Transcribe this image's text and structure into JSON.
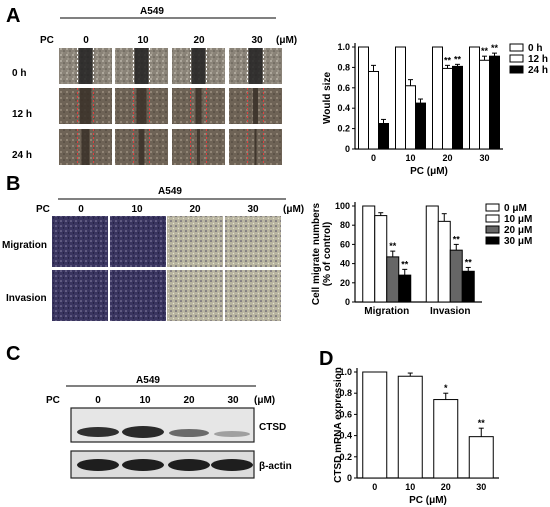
{
  "panels": {
    "A": {
      "letter": "A",
      "cell_line": "A549",
      "pc_label": "PC",
      "unit": "(μM)",
      "doses": [
        "0",
        "10",
        "20",
        "30"
      ],
      "times": [
        "0 h",
        "12 h",
        "24 h"
      ]
    },
    "B": {
      "letter": "B",
      "cell_line": "A549",
      "pc_label": "PC",
      "unit": "(μM)",
      "doses": [
        "0",
        "10",
        "20",
        "30"
      ],
      "rows": [
        "Migration",
        "Invasion"
      ]
    },
    "C": {
      "letter": "C",
      "cell_line": "A549",
      "pc_label": "PC",
      "unit": "(μM)",
      "doses": [
        "0",
        "10",
        "20",
        "30"
      ],
      "bands": [
        "CTSD",
        "β-actin"
      ]
    },
    "D": {
      "letter": "D"
    }
  },
  "colors": {
    "white_bar": "#ffffff",
    "gray_bar": "#666666",
    "black_bar": "#000000",
    "micro_purple": "#3a3560"
  },
  "chart_data": [
    {
      "id": "A",
      "type": "bar",
      "ylabel": "Would size",
      "xlabel": "PC (μM)",
      "categories": [
        "0",
        "10",
        "20",
        "30"
      ],
      "ylim": [
        0,
        1.0
      ],
      "yticks": [
        "0",
        "0.2",
        "0.4",
        "0.6",
        "0.8",
        "1.0"
      ],
      "legend_position": "top-right",
      "series": [
        {
          "name": "0 h",
          "values": [
            1.0,
            1.0,
            1.0,
            1.0
          ],
          "errors": [
            0,
            0,
            0,
            0
          ],
          "color": "#ffffff",
          "sig": [
            "",
            "",
            "",
            ""
          ]
        },
        {
          "name": "12 h",
          "values": [
            0.76,
            0.62,
            0.79,
            0.87
          ],
          "errors": [
            0.06,
            0.06,
            0.03,
            0.04
          ],
          "color": "#ffffff",
          "sig": [
            "",
            "",
            "**",
            "**"
          ]
        },
        {
          "name": "24 h",
          "values": [
            0.25,
            0.45,
            0.81,
            0.91
          ],
          "errors": [
            0.04,
            0.04,
            0.02,
            0.03
          ],
          "color": "#000000",
          "sig": [
            "",
            "",
            "**",
            "**"
          ]
        }
      ]
    },
    {
      "id": "B",
      "type": "bar",
      "ylabel": "Cell migrate numbers (% of control)",
      "xlabel": "",
      "categories": [
        "Migration",
        "Invasion"
      ],
      "ylim": [
        0,
        100
      ],
      "yticks": [
        "0",
        "20",
        "40",
        "60",
        "80",
        "100"
      ],
      "legend_position": "top-right",
      "series": [
        {
          "name": "0 μM",
          "values": [
            100,
            100
          ],
          "errors": [
            0,
            0
          ],
          "color": "#ffffff",
          "sig": [
            "",
            ""
          ]
        },
        {
          "name": "10 μM",
          "values": [
            90,
            84
          ],
          "errors": [
            3,
            8
          ],
          "color": "#ffffff",
          "sig": [
            "",
            ""
          ]
        },
        {
          "name": "20 μM",
          "values": [
            47,
            54
          ],
          "errors": [
            6,
            6
          ],
          "color": "#666666",
          "sig": [
            "**",
            "**"
          ]
        },
        {
          "name": "30 μM",
          "values": [
            28,
            32
          ],
          "errors": [
            6,
            4
          ],
          "color": "#000000",
          "sig": [
            "**",
            "**"
          ]
        }
      ]
    },
    {
      "id": "D",
      "type": "bar",
      "ylabel": "CTSD mRNA expression",
      "xlabel": "PC (μM)",
      "categories": [
        "0",
        "10",
        "20",
        "30"
      ],
      "ylim": [
        0,
        1.0
      ],
      "yticks": [
        "0",
        "0.2",
        "0.4",
        "0.6",
        "0.8",
        "1.0"
      ],
      "series": [
        {
          "name": "",
          "values": [
            1.0,
            0.96,
            0.74,
            0.39
          ],
          "errors": [
            0,
            0.03,
            0.06,
            0.08
          ],
          "color": "#ffffff",
          "sig": [
            "",
            "",
            "*",
            "**"
          ]
        }
      ]
    }
  ]
}
